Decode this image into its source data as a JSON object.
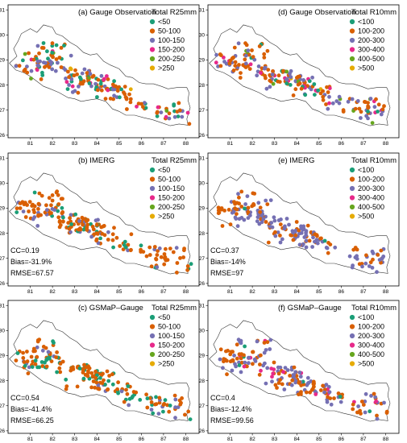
{
  "colors": {
    "c1": "#1b9e77",
    "c2": "#d95f02",
    "c3": "#7570b3",
    "c4": "#e7298a",
    "c5": "#66a61e",
    "c6": "#e6ab02"
  },
  "axes": {
    "x_ticks": [
      "81",
      "82",
      "83",
      "84",
      "85",
      "86",
      "87",
      "88"
    ],
    "y_ticks": [
      "26",
      "27",
      "28",
      "29",
      "30",
      "31"
    ]
  },
  "panels": [
    {
      "id": "a",
      "title": "(a) Gauge Observation",
      "metric": "Total R25mm",
      "legend": [
        "<50",
        "50-100",
        "100-150",
        "150-200",
        "200-250",
        ">250"
      ],
      "weights": [
        20,
        45,
        22,
        9,
        3,
        1
      ],
      "stats": []
    },
    {
      "id": "d",
      "title": "(d) Gauge Observation",
      "metric": "Total R10mm",
      "legend": [
        "<100",
        "100-200",
        "200-300",
        "300-400",
        "400-500",
        ">500"
      ],
      "weights": [
        6,
        44,
        33,
        11,
        5,
        1
      ],
      "stats": []
    },
    {
      "id": "b",
      "title": "(b) IMERG",
      "metric": "Total R25mm",
      "legend": [
        "<50",
        "50-100",
        "100-150",
        "150-200",
        "200-250",
        ">250"
      ],
      "weights": [
        12,
        70,
        18,
        0,
        0,
        0
      ],
      "stats": [
        "CC=0.19",
        "Bias=-31.9%",
        "RMSE=67.57"
      ]
    },
    {
      "id": "e",
      "title": "(e) IMERG",
      "metric": "Total R10mm",
      "legend": [
        "<100",
        "100-200",
        "200-300",
        "300-400",
        "400-500",
        ">500"
      ],
      "weights": [
        2,
        40,
        58,
        0,
        0,
        0
      ],
      "stats": [
        "CC=0.37",
        "Bias=-14%",
        "RMSE=97"
      ]
    },
    {
      "id": "c",
      "title": "(c) GSMaP–Gauge",
      "metric": "Total R25mm",
      "legend": [
        "<50",
        "50-100",
        "100-150",
        "150-200",
        "200-250",
        ">250"
      ],
      "weights": [
        30,
        55,
        15,
        0,
        0,
        0
      ],
      "stats": [
        "CC=0.54",
        "Bias=-41.4%",
        "RMSE=66.25"
      ]
    },
    {
      "id": "f",
      "title": "(f) GSMaP–Gauge",
      "metric": "Total R10mm",
      "legend": [
        "<100",
        "100-200",
        "200-300",
        "300-400",
        "400-500",
        ">500"
      ],
      "weights": [
        3,
        42,
        45,
        10,
        0,
        0
      ],
      "stats": [
        "CC=0.4",
        "Bias=-12.4%",
        "RMSE=99.56"
      ]
    }
  ]
}
